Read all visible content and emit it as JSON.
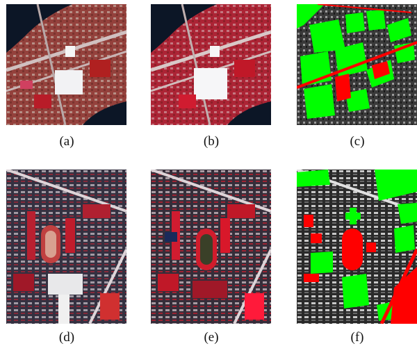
{
  "figure": {
    "panels": [
      {
        "id": "a",
        "caption": "(a)",
        "type": "false-color-image",
        "scene": "industrial"
      },
      {
        "id": "b",
        "caption": "(b)",
        "type": "false-color-image",
        "scene": "industrial"
      },
      {
        "id": "c",
        "caption": "(c)",
        "type": "change-map-overlay",
        "scene": "industrial"
      },
      {
        "id": "d",
        "caption": "(d)",
        "type": "false-color-image",
        "scene": "urban"
      },
      {
        "id": "e",
        "caption": "(e)",
        "type": "false-color-image",
        "scene": "urban"
      },
      {
        "id": "f",
        "caption": "(f)",
        "type": "change-map-overlay",
        "scene": "urban"
      }
    ],
    "colors": {
      "vegetation_red": "#c0152a",
      "highlight_green": "#00ff00",
      "highlight_red": "#ff0000",
      "water_dark": "#0c1626"
    }
  }
}
